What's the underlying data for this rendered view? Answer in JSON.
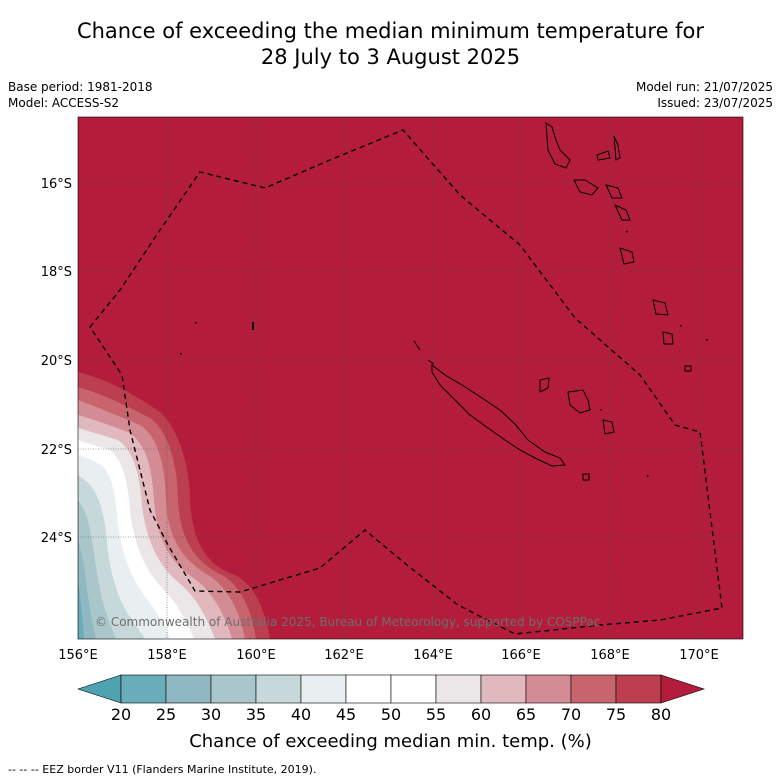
{
  "title_line1": "Chance of exceeding the median minimum temperature for",
  "title_line2": "28 July to 3 August 2025",
  "base_period": "Base period: 1981-2018",
  "model": "Model: ACCESS-S2",
  "model_run": "Model run: 21/07/2025",
  "issued": "Issued: 23/07/2025",
  "copyright": "© Commonwealth of Australia 2025, Bureau of Meteorology, supported by COSPPac",
  "lat_labels": [
    "16°S",
    "18°S",
    "20°S",
    "22°S",
    "24°S"
  ],
  "lon_labels": [
    "156°E",
    "158°E",
    "160°E",
    "162°E",
    "164°E",
    "166°E",
    "168°E",
    "170°E"
  ],
  "colorbar": {
    "title": "Chance of exceeding median min. temp. (%)",
    "ticks": [
      "20",
      "25",
      "30",
      "35",
      "40",
      "45",
      "50",
      "55",
      "60",
      "65",
      "70",
      "75",
      "80"
    ],
    "colors": [
      "#68adb9",
      "#8fb8c2",
      "#a9c6cb",
      "#c6d8da",
      "#e9eff0",
      "#ffffff",
      "#ffffff",
      "#ebe7e8",
      "#e0b8bd",
      "#d48c94",
      "#c7646e",
      "#bb3f4e"
    ],
    "low_color": "#4fa3b1",
    "high_color": "#b31c3a"
  },
  "footnote": "--  --  -- EEZ border V11 (Flanders Marine Institute, 2019).",
  "colors": {
    "map_fill": "#b31c3a",
    "grid": "#555555"
  }
}
